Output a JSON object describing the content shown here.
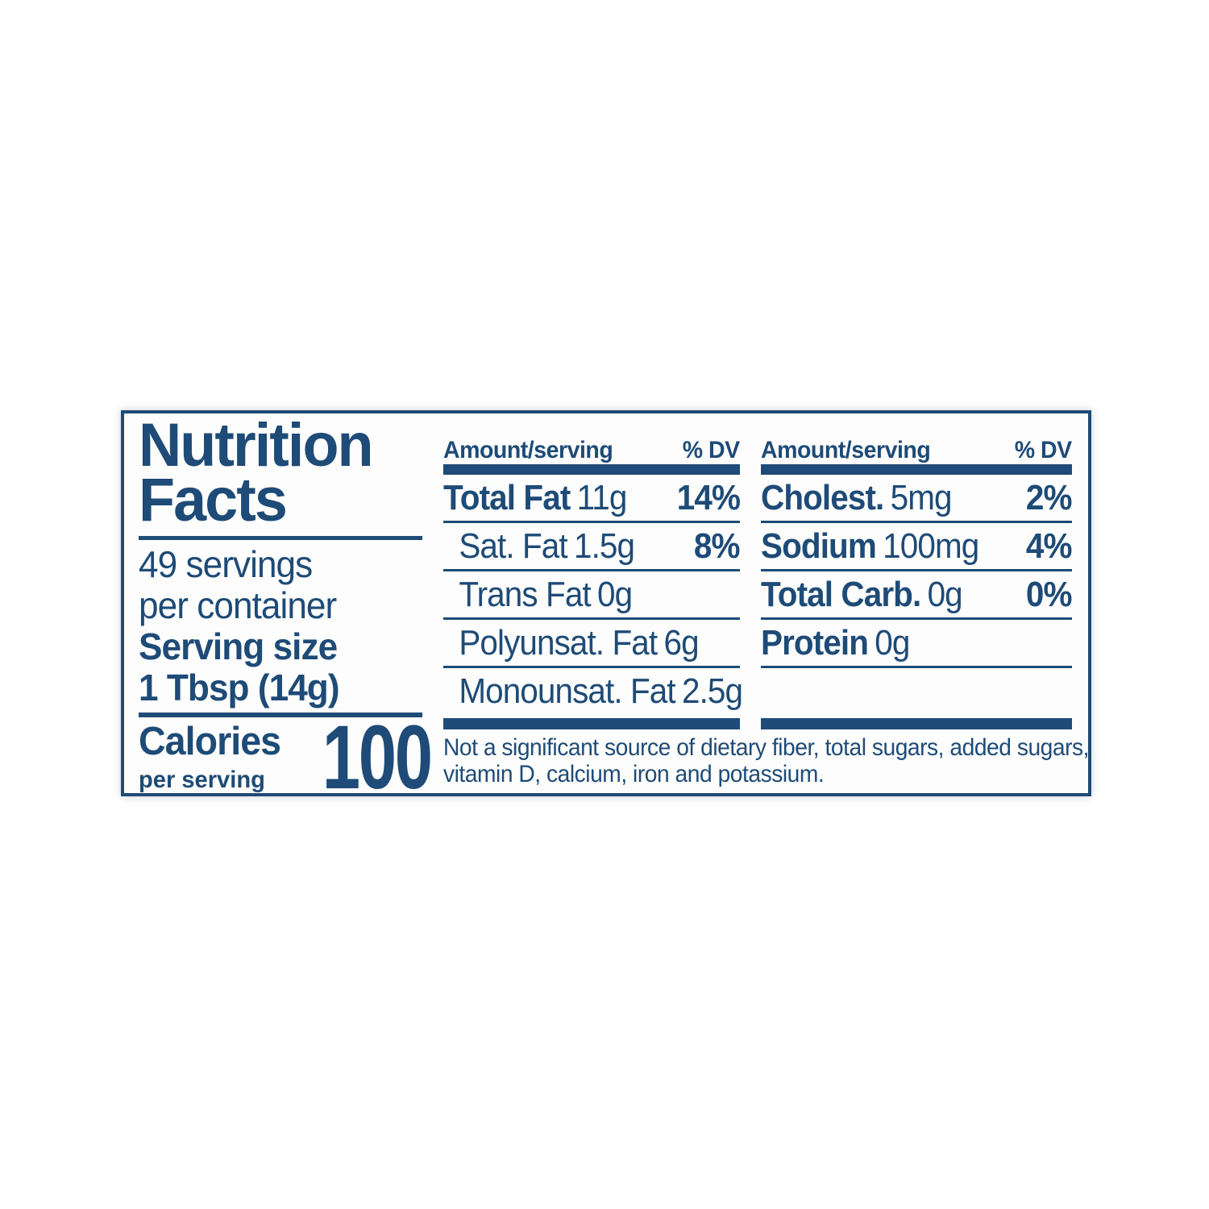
{
  "label": {
    "title_line1": "Nutrition",
    "title_line2": "Facts",
    "servings_line1": "49 servings",
    "servings_line2": "per container",
    "serving_size_label": "Serving size",
    "serving_size_value": "1 Tbsp (14g)",
    "calories_label": "Calories",
    "calories_sublabel": "per serving",
    "calories_value": "100",
    "columns": [
      {
        "header_amount": "Amount/serving",
        "header_dv": "% DV",
        "rows": [
          {
            "name": "Total Fat",
            "value": "11g",
            "dv": "14%"
          },
          {
            "name": "Sat. Fat",
            "value": "1.5g",
            "dv": "8%"
          },
          {
            "name": "Trans Fat",
            "value": "0g",
            "dv": ""
          },
          {
            "name": "Polyunsat. Fat",
            "value": "6g",
            "dv": ""
          },
          {
            "name": "Monounsat. Fat",
            "value": "2.5g",
            "dv": ""
          }
        ]
      },
      {
        "header_amount": "Amount/serving",
        "header_dv": "% DV",
        "rows": [
          {
            "name": "Cholest.",
            "value": "5mg",
            "dv": "2%"
          },
          {
            "name": "Sodium",
            "value": "100mg",
            "dv": "4%"
          },
          {
            "name": "Total Carb.",
            "value": "0g",
            "dv": "0%"
          },
          {
            "name": "Protein",
            "value": "0g",
            "dv": ""
          }
        ]
      }
    ],
    "footnote_line1": "Not a significant source of dietary fiber, total sugars, added sugars,",
    "footnote_line2": "vitamin D, calcium, iron and potassium.",
    "colors": {
      "blue": "#1e4b77",
      "label_background": "#fdfdfd",
      "page_background": "#ffffff"
    }
  }
}
